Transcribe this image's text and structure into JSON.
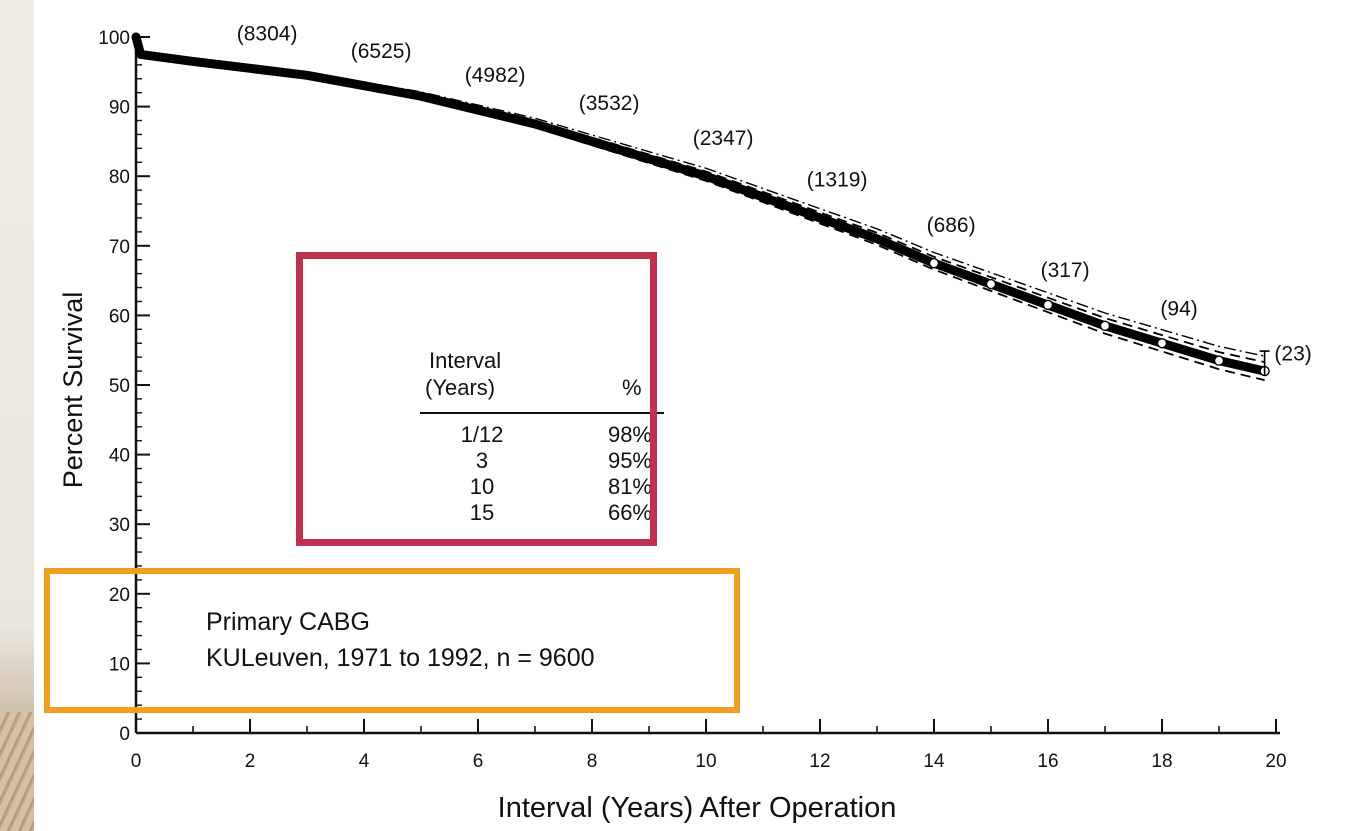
{
  "colors": {
    "curve": "#000000",
    "highlight_box_red": "#c0304f",
    "highlight_box_orange": "#f0a020",
    "page_background": "#efece6"
  },
  "chart_data": {
    "type": "line",
    "title": "",
    "xlabel": "Interval (Years) After Operation",
    "ylabel": "Percent Survival",
    "xlim": [
      0,
      20
    ],
    "ylim": [
      0,
      100
    ],
    "x_ticks": [
      0,
      2,
      4,
      6,
      8,
      10,
      12,
      14,
      16,
      18,
      20
    ],
    "y_ticks": [
      0,
      10,
      20,
      30,
      40,
      50,
      60,
      70,
      80,
      90,
      100
    ],
    "grid": false,
    "series": [
      {
        "x": [
          0,
          0.08,
          1,
          2,
          3,
          4,
          5,
          6,
          7,
          8,
          9,
          10,
          11,
          12,
          13,
          14,
          15,
          16,
          17,
          18,
          19,
          19.8
        ],
        "values": [
          100,
          97.5,
          96.5,
          95.5,
          94.5,
          93,
          91.5,
          89.5,
          87.5,
          85,
          82.5,
          80,
          77,
          74,
          71,
          67.5,
          64.5,
          61.5,
          58.5,
          56,
          53.5,
          52
        ]
      }
    ],
    "patients_at_risk": [
      {
        "x": 2.3,
        "y": 99.5,
        "label": "(8304)"
      },
      {
        "x": 4.3,
        "y": 97,
        "label": "(6525)"
      },
      {
        "x": 6.3,
        "y": 93.5,
        "label": "(4982)"
      },
      {
        "x": 8.3,
        "y": 89.5,
        "label": "(3532)"
      },
      {
        "x": 10.3,
        "y": 84.5,
        "label": "(2347)"
      },
      {
        "x": 12.3,
        "y": 78.5,
        "label": "(1319)"
      },
      {
        "x": 14.3,
        "y": 72,
        "label": "(686)"
      },
      {
        "x": 16.3,
        "y": 65.5,
        "label": "(317)"
      },
      {
        "x": 18.3,
        "y": 60,
        "label": "(94)"
      },
      {
        "x": 20.3,
        "y": 53.5,
        "label": "(23)"
      }
    ],
    "inset_table": {
      "headers": [
        "Interval\n(Years)",
        "%"
      ],
      "header_line1": "Interval",
      "header_line2": "(Years)",
      "pct_header": "%",
      "rows": [
        {
          "interval": "1/12",
          "pct": "98%"
        },
        {
          "interval": "3",
          "pct": "95%"
        },
        {
          "interval": "10",
          "pct": "81%"
        },
        {
          "interval": "15",
          "pct": "66%"
        }
      ]
    },
    "caption_line1": "Primary CABG",
    "caption_line2": "KULeuven, 1971 to 1992, n = 9600"
  }
}
